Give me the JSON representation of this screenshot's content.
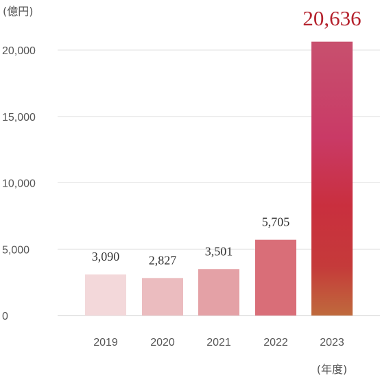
{
  "chart_data": {
    "type": "bar",
    "ylabel": "(億円)",
    "xunit": "(年度)",
    "categories": [
      "2019",
      "2020",
      "2021",
      "2022",
      "2023"
    ],
    "values": [
      3090,
      2827,
      3501,
      5705,
      20636
    ],
    "value_labels": [
      "3,090",
      "2,827",
      "3,501",
      "5,705",
      "20,636"
    ],
    "ylim": [
      0,
      20000
    ],
    "yticks": [
      0,
      5000,
      10000,
      15000,
      20000
    ],
    "ytick_labels": [
      "0",
      "5,000",
      "10,000",
      "15,000",
      "20,000"
    ],
    "grid": true,
    "bar_colors": [
      "#f3d8da",
      "#ebbcbf",
      "#e4a1a6",
      "#d96e78",
      "#c8365a"
    ],
    "highlight_label_color": "#b5222d"
  }
}
